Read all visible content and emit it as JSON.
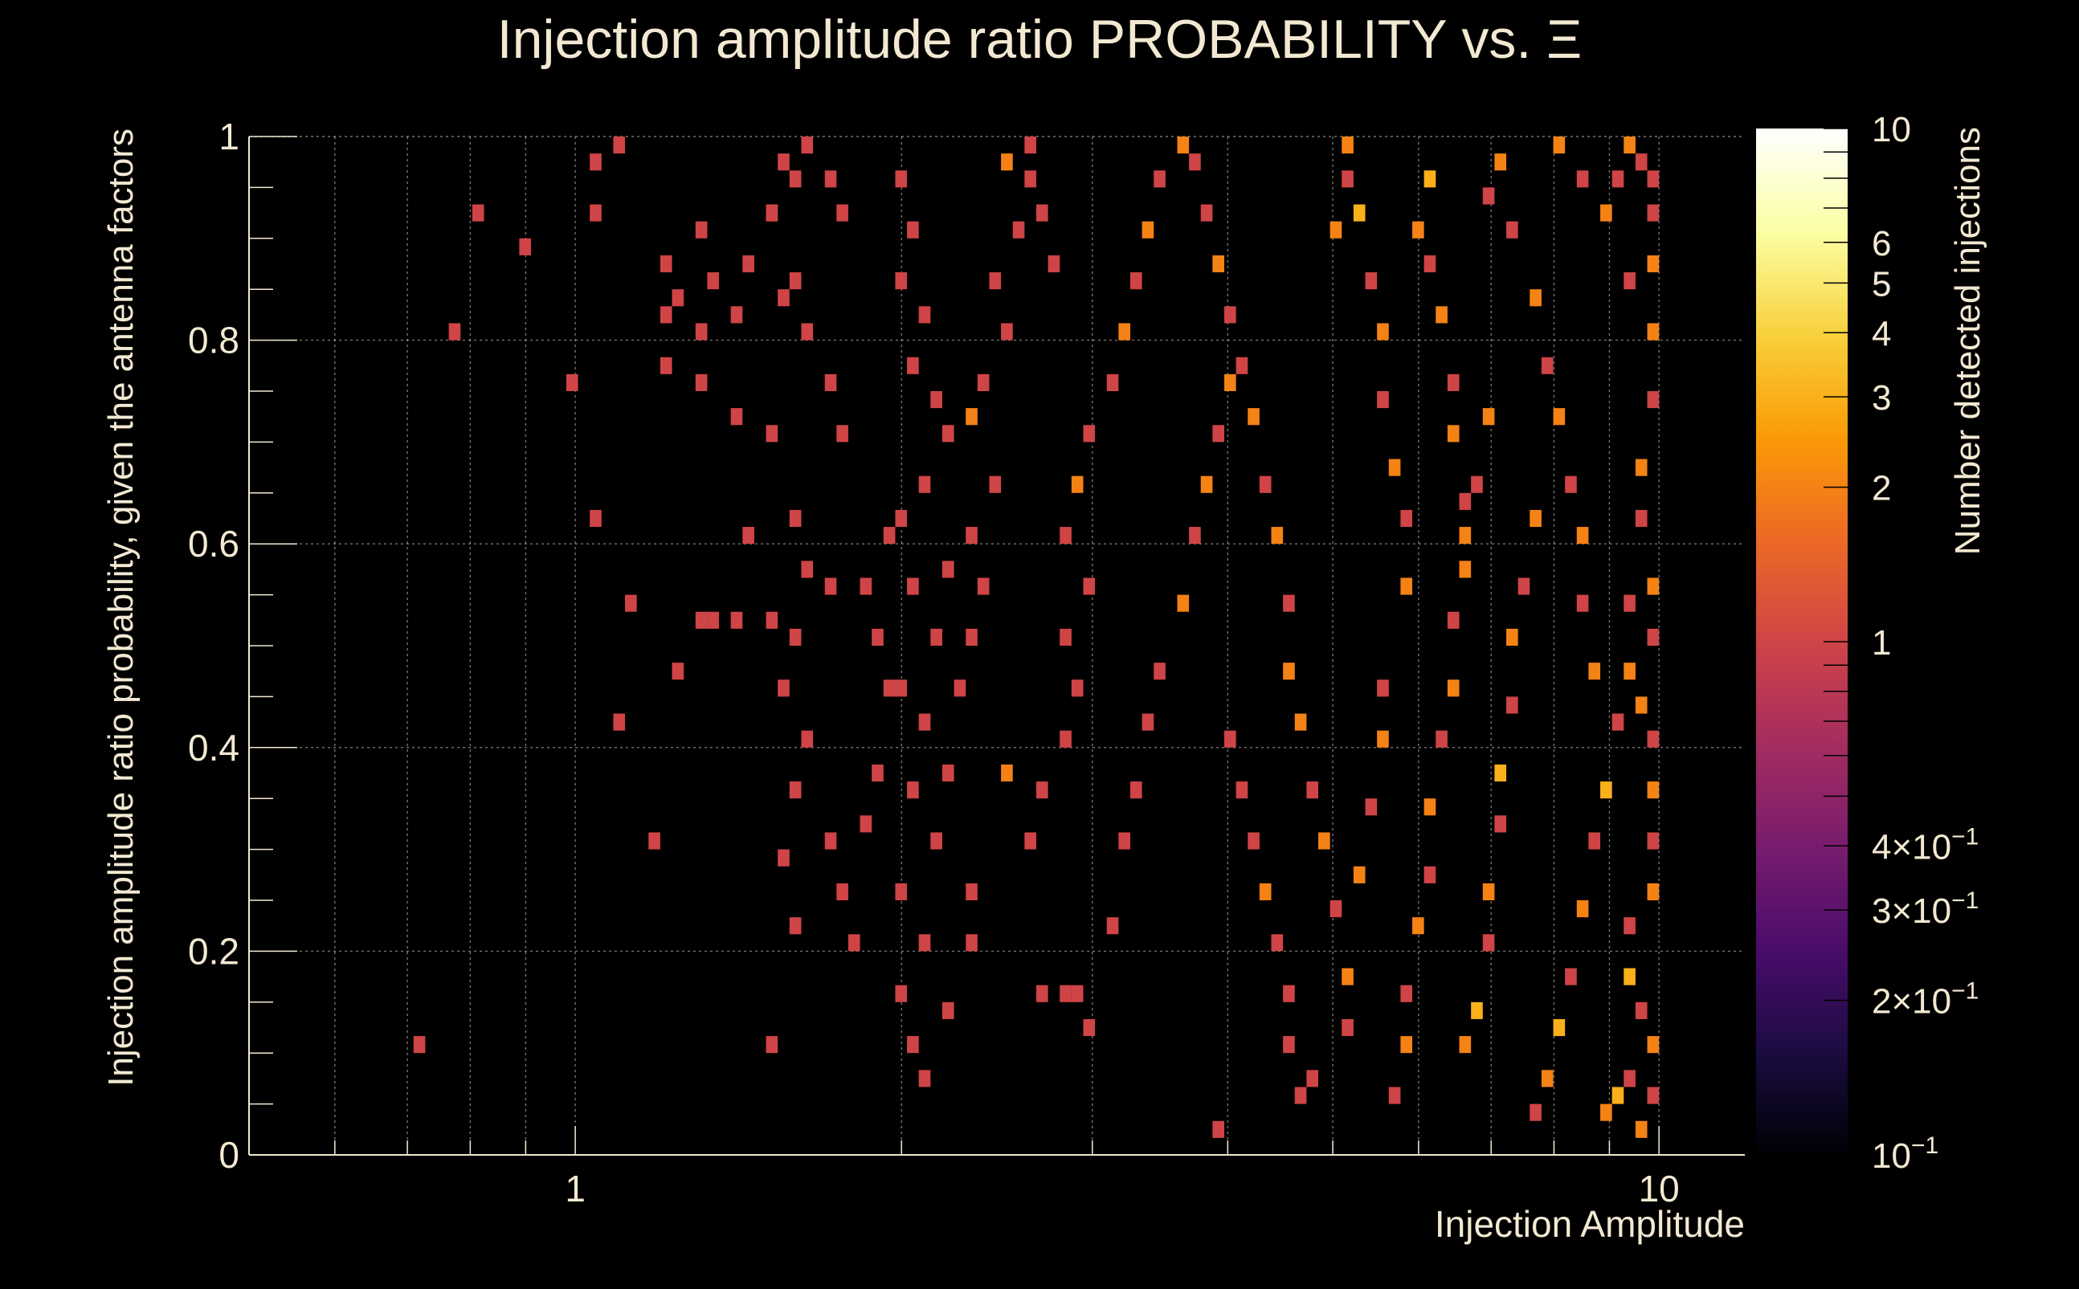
{
  "chart_data": {
    "type": "heatmap",
    "title": "Injection amplitude ratio PROBABILITY vs.  Ξ",
    "xlabel": "Injection Amplitude",
    "ylabel": "Injection amplitude ratio probability, given the antenna factors",
    "zlabel": "Number detected injections",
    "x_scale": "log",
    "xlim": [
      0.5,
      12
    ],
    "ylim": [
      0,
      1
    ],
    "zlim": [
      0.1,
      10
    ],
    "z_scale": "log",
    "x_ticks": [
      {
        "value": 1,
        "label": "1"
      },
      {
        "value": 10,
        "label": "10"
      }
    ],
    "y_ticks": [
      {
        "value": 0,
        "label": "0"
      },
      {
        "value": 0.2,
        "label": "0.2"
      },
      {
        "value": 0.4,
        "label": "0.4"
      },
      {
        "value": 0.6,
        "label": "0.6"
      },
      {
        "value": 0.8,
        "label": "0.8"
      },
      {
        "value": 1,
        "label": "1"
      }
    ],
    "z_ticks": [
      {
        "value": 10,
        "label": "10"
      },
      {
        "value": 6,
        "label": "6"
      },
      {
        "value": 5,
        "label": "5"
      },
      {
        "value": 4,
        "label": "4"
      },
      {
        "value": 3,
        "label": "3"
      },
      {
        "value": 2,
        "label": "2"
      },
      {
        "value": 1,
        "label": "1"
      },
      {
        "value": 0.4,
        "label": "4×10",
        "exp": "−1"
      },
      {
        "value": 0.3,
        "label": "3×10",
        "exp": "−1"
      },
      {
        "value": 0.2,
        "label": "2×10",
        "exp": "−1"
      },
      {
        "value": 0.1,
        "label": "10",
        "exp": "−1"
      }
    ],
    "grid": true,
    "colormap": [
      "#000004",
      "#1b0c41",
      "#4a0c6b",
      "#781c6d",
      "#a52c60",
      "#cf4446",
      "#ed6925",
      "#fb9b06",
      "#f7d13d",
      "#fcffa4",
      "#ffffff"
    ],
    "bins": {
      "x_min": 0.5,
      "x_max": 10,
      "n_x": 120,
      "y_min": 0,
      "y_max": 1,
      "n_y": 60
    },
    "cells": [
      [
        0.82,
        0.93,
        1
      ],
      [
        0.9,
        0.89,
        1
      ],
      [
        0.78,
        0.8,
        1
      ],
      [
        0.72,
        0.105,
        1
      ],
      [
        1.0,
        0.75,
        1
      ],
      [
        1.05,
        0.62,
        1
      ],
      [
        1.12,
        0.54,
        1
      ],
      [
        1.1,
        0.43,
        1
      ],
      [
        1.18,
        0.3,
        1
      ],
      [
        1.05,
        0.98,
        1
      ],
      [
        1.05,
        0.93,
        1
      ],
      [
        1.1,
        1.0,
        1
      ],
      [
        1.2,
        0.88,
        1
      ],
      [
        1.25,
        0.84,
        1
      ],
      [
        1.3,
        0.9,
        1
      ],
      [
        1.35,
        0.86,
        1
      ],
      [
        1.2,
        0.82,
        1
      ],
      [
        1.3,
        0.8,
        1
      ],
      [
        1.4,
        0.82,
        1
      ],
      [
        1.45,
        0.87,
        1
      ],
      [
        1.5,
        0.92,
        1
      ],
      [
        1.55,
        0.84,
        1
      ],
      [
        1.2,
        0.78,
        1
      ],
      [
        1.3,
        0.76,
        1
      ],
      [
        1.4,
        0.72,
        1
      ],
      [
        1.5,
        0.7,
        1
      ],
      [
        1.45,
        0.6,
        1
      ],
      [
        1.35,
        0.53,
        1
      ],
      [
        1.3,
        0.52,
        1
      ],
      [
        1.25,
        0.47,
        1
      ],
      [
        1.4,
        0.52,
        1
      ],
      [
        1.5,
        0.52,
        1
      ],
      [
        1.5,
        0.92,
        1
      ],
      [
        1.6,
        0.95,
        1
      ],
      [
        1.55,
        0.98,
        1
      ],
      [
        1.65,
        1.0,
        1
      ],
      [
        1.7,
        0.96,
        1
      ],
      [
        1.75,
        0.93,
        1
      ],
      [
        1.6,
        0.85,
        1
      ],
      [
        1.65,
        0.8,
        1
      ],
      [
        1.7,
        0.75,
        1
      ],
      [
        1.75,
        0.7,
        1
      ],
      [
        1.6,
        0.62,
        1
      ],
      [
        1.65,
        0.58,
        1
      ],
      [
        1.7,
        0.55,
        1
      ],
      [
        1.6,
        0.5,
        1
      ],
      [
        1.55,
        0.45,
        1
      ],
      [
        1.65,
        0.4,
        1
      ],
      [
        1.6,
        0.36,
        1
      ],
      [
        1.55,
        0.29,
        1
      ],
      [
        1.7,
        0.3,
        1
      ],
      [
        1.75,
        0.26,
        1
      ],
      [
        1.5,
        0.1,
        1
      ],
      [
        1.6,
        0.22,
        1
      ],
      [
        1.8,
        0.2,
        1
      ],
      [
        1.85,
        0.32,
        1
      ],
      [
        1.9,
        0.38,
        1
      ],
      [
        1.95,
        0.45,
        1
      ],
      [
        1.9,
        0.5,
        1
      ],
      [
        1.85,
        0.55,
        1
      ],
      [
        1.95,
        0.6,
        1
      ],
      [
        2.0,
        0.95,
        1
      ],
      [
        2.05,
        0.9,
        1
      ],
      [
        2.0,
        0.85,
        1
      ],
      [
        2.1,
        0.82,
        1
      ],
      [
        2.05,
        0.78,
        1
      ],
      [
        2.15,
        0.74,
        1
      ],
      [
        2.2,
        0.7,
        1
      ],
      [
        2.1,
        0.66,
        1
      ],
      [
        2.0,
        0.62,
        1
      ],
      [
        2.2,
        0.58,
        1
      ],
      [
        2.05,
        0.55,
        1
      ],
      [
        2.15,
        0.5,
        1
      ],
      [
        2.0,
        0.45,
        1
      ],
      [
        2.1,
        0.42,
        1
      ],
      [
        2.2,
        0.38,
        1
      ],
      [
        2.05,
        0.35,
        1
      ],
      [
        2.15,
        0.3,
        1
      ],
      [
        2.0,
        0.25,
        1
      ],
      [
        2.1,
        0.2,
        1
      ],
      [
        2.0,
        0.16,
        1
      ],
      [
        2.05,
        0.1,
        1
      ],
      [
        2.1,
        0.08,
        1
      ],
      [
        2.2,
        0.14,
        1
      ],
      [
        2.3,
        0.25,
        1
      ],
      [
        2.35,
        0.2,
        1
      ],
      [
        2.25,
        0.45,
        1
      ],
      [
        2.3,
        0.5,
        1
      ],
      [
        2.4,
        0.55,
        1
      ],
      [
        2.35,
        0.6,
        1
      ],
      [
        2.45,
        0.65,
        1
      ],
      [
        2.3,
        0.72,
        2
      ],
      [
        2.4,
        0.76,
        1
      ],
      [
        2.5,
        0.8,
        1
      ],
      [
        2.45,
        0.85,
        1
      ],
      [
        2.55,
        0.9,
        1
      ],
      [
        2.6,
        0.95,
        1
      ],
      [
        2.5,
        0.98,
        2
      ],
      [
        2.65,
        1.0,
        1
      ],
      [
        2.7,
        0.93,
        1
      ],
      [
        2.75,
        0.88,
        1
      ],
      [
        2.6,
        0.3,
        1
      ],
      [
        2.7,
        0.35,
        1
      ],
      [
        2.5,
        0.38,
        2
      ],
      [
        2.8,
        0.4,
        1
      ],
      [
        2.9,
        0.45,
        1
      ],
      [
        2.85,
        0.5,
        1
      ],
      [
        2.95,
        0.55,
        1
      ],
      [
        2.8,
        0.6,
        1
      ],
      [
        2.9,
        0.65,
        2
      ],
      [
        3.0,
        0.7,
        1
      ],
      [
        2.7,
        0.15,
        1
      ],
      [
        2.8,
        0.15,
        1
      ],
      [
        2.9,
        0.15,
        1
      ],
      [
        3.0,
        0.12,
        1
      ],
      [
        3.1,
        0.22,
        1
      ],
      [
        3.2,
        0.3,
        1
      ],
      [
        3.3,
        0.36,
        1
      ],
      [
        3.4,
        0.42,
        1
      ],
      [
        3.5,
        0.48,
        1
      ],
      [
        3.6,
        0.54,
        2
      ],
      [
        3.1,
        0.75,
        1
      ],
      [
        3.2,
        0.8,
        2
      ],
      [
        3.3,
        0.85,
        1
      ],
      [
        3.4,
        0.9,
        2
      ],
      [
        3.5,
        0.95,
        1
      ],
      [
        3.6,
        1.0,
        2
      ],
      [
        3.7,
        0.97,
        1
      ],
      [
        3.8,
        0.92,
        1
      ],
      [
        3.9,
        0.87,
        2
      ],
      [
        4.0,
        0.82,
        1
      ],
      [
        3.7,
        0.6,
        1
      ],
      [
        3.8,
        0.65,
        2
      ],
      [
        3.9,
        0.7,
        1
      ],
      [
        4.0,
        0.75,
        2
      ],
      [
        4.1,
        0.78,
        1
      ],
      [
        4.2,
        0.72,
        2
      ],
      [
        4.3,
        0.66,
        1
      ],
      [
        4.4,
        0.6,
        2
      ],
      [
        4.5,
        0.54,
        1
      ],
      [
        4.6,
        0.48,
        2
      ],
      [
        4.0,
        0.4,
        1
      ],
      [
        4.1,
        0.35,
        1
      ],
      [
        4.2,
        0.3,
        1
      ],
      [
        4.3,
        0.25,
        2
      ],
      [
        4.4,
        0.2,
        1
      ],
      [
        4.5,
        0.15,
        1
      ],
      [
        4.6,
        0.1,
        1
      ],
      [
        4.7,
        0.05,
        1
      ],
      [
        4.8,
        0.08,
        1
      ],
      [
        3.9,
        0.02,
        1
      ],
      [
        4.7,
        0.42,
        2
      ],
      [
        4.8,
        0.36,
        1
      ],
      [
        4.9,
        0.3,
        2
      ],
      [
        5.0,
        0.24,
        1
      ],
      [
        5.1,
        0.18,
        2
      ],
      [
        5.2,
        0.12,
        1
      ],
      [
        5.3,
        0.28,
        2
      ],
      [
        5.4,
        0.34,
        1
      ],
      [
        5.5,
        0.4,
        2
      ],
      [
        5.6,
        0.46,
        1
      ],
      [
        5.0,
        0.9,
        2
      ],
      [
        5.1,
        0.95,
        1
      ],
      [
        5.2,
        1.0,
        2
      ],
      [
        5.3,
        0.93,
        3
      ],
      [
        5.4,
        0.86,
        1
      ],
      [
        5.5,
        0.8,
        2
      ],
      [
        5.6,
        0.74,
        1
      ],
      [
        5.7,
        0.68,
        2
      ],
      [
        5.8,
        0.62,
        1
      ],
      [
        5.9,
        0.56,
        2
      ],
      [
        5.7,
        0.05,
        1
      ],
      [
        5.8,
        0.1,
        2
      ],
      [
        5.9,
        0.16,
        1
      ],
      [
        6.0,
        0.22,
        2
      ],
      [
        6.1,
        0.28,
        1
      ],
      [
        6.2,
        0.34,
        2
      ],
      [
        6.3,
        0.4,
        1
      ],
      [
        6.4,
        0.46,
        2
      ],
      [
        6.5,
        0.52,
        1
      ],
      [
        6.6,
        0.58,
        2
      ],
      [
        6.0,
        0.9,
        2
      ],
      [
        6.1,
        0.96,
        3
      ],
      [
        6.2,
        0.88,
        1
      ],
      [
        6.3,
        0.82,
        2
      ],
      [
        6.4,
        0.76,
        1
      ],
      [
        6.5,
        0.7,
        2
      ],
      [
        6.6,
        0.64,
        1
      ],
      [
        6.7,
        0.6,
        2
      ],
      [
        6.8,
        0.66,
        1
      ],
      [
        6.9,
        0.72,
        2
      ],
      [
        6.7,
        0.1,
        2
      ],
      [
        6.8,
        0.14,
        3
      ],
      [
        6.9,
        0.2,
        1
      ],
      [
        7.0,
        0.26,
        2
      ],
      [
        7.1,
        0.32,
        1
      ],
      [
        7.2,
        0.38,
        3
      ],
      [
        7.3,
        0.44,
        1
      ],
      [
        7.4,
        0.5,
        2
      ],
      [
        7.5,
        0.56,
        1
      ],
      [
        7.6,
        0.62,
        2
      ],
      [
        7.0,
        0.94,
        1
      ],
      [
        7.2,
        0.98,
        2
      ],
      [
        7.4,
        0.9,
        1
      ],
      [
        7.6,
        0.84,
        2
      ],
      [
        7.8,
        0.78,
        1
      ],
      [
        8.0,
        0.72,
        2
      ],
      [
        8.2,
        0.66,
        1
      ],
      [
        8.4,
        0.6,
        2
      ],
      [
        8.6,
        0.54,
        1
      ],
      [
        8.8,
        0.48,
        2
      ],
      [
        7.7,
        0.04,
        1
      ],
      [
        7.9,
        0.08,
        2
      ],
      [
        8.1,
        0.12,
        3
      ],
      [
        8.3,
        0.18,
        1
      ],
      [
        8.5,
        0.24,
        2
      ],
      [
        8.7,
        0.3,
        1
      ],
      [
        8.9,
        0.36,
        3
      ],
      [
        9.1,
        0.42,
        1
      ],
      [
        9.3,
        0.48,
        2
      ],
      [
        9.5,
        0.54,
        1
      ],
      [
        8.0,
        1.0,
        2
      ],
      [
        8.5,
        0.96,
        1
      ],
      [
        9.0,
        0.92,
        2
      ],
      [
        9.5,
        0.86,
        1
      ],
      [
        9.8,
        0.8,
        2
      ],
      [
        9.9,
        0.74,
        1
      ],
      [
        9.7,
        0.68,
        2
      ],
      [
        9.6,
        0.62,
        1
      ],
      [
        9.9,
        0.56,
        2
      ],
      [
        9.8,
        0.5,
        1
      ],
      [
        9.0,
        0.04,
        2
      ],
      [
        9.2,
        0.06,
        3
      ],
      [
        9.4,
        0.08,
        1
      ],
      [
        9.6,
        0.03,
        2
      ],
      [
        9.8,
        0.05,
        1
      ],
      [
        9.9,
        0.1,
        2
      ],
      [
        9.7,
        0.14,
        1
      ],
      [
        9.5,
        0.18,
        3
      ],
      [
        9.3,
        0.22,
        1
      ],
      [
        9.9,
        0.26,
        2
      ],
      [
        9.9,
        0.3,
        1
      ],
      [
        9.8,
        0.35,
        2
      ],
      [
        9.9,
        0.4,
        1
      ],
      [
        9.7,
        0.44,
        2
      ],
      [
        9.9,
        0.92,
        1
      ],
      [
        9.8,
        0.95,
        1
      ],
      [
        9.9,
        0.88,
        2
      ],
      [
        9.6,
        0.98,
        1
      ],
      [
        9.4,
        1.0,
        2
      ],
      [
        9.2,
        0.95,
        1
      ]
    ]
  }
}
